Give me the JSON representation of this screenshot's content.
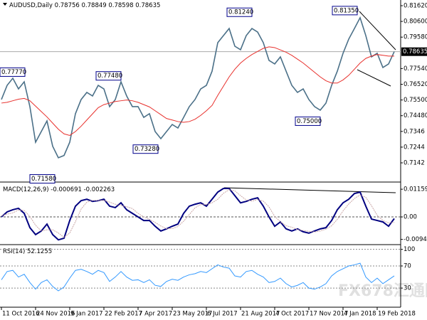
{
  "header": {
    "symbol": "AUDUSD,Daily",
    "open": 0.78756,
    "high": 0.78849,
    "low": 0.78598,
    "close": 0.78635
  },
  "watermark": "FX678汇通网",
  "chart_data": [
    {
      "type": "line",
      "categories": [
        "11 Oct 2016",
        null,
        null,
        null,
        null,
        null,
        "24 Nov 2016",
        null,
        null,
        null,
        null,
        null,
        "9 Jan 2017",
        null,
        null,
        null,
        null,
        null,
        "22 Feb 2017",
        null,
        null,
        null,
        null,
        null,
        "7 Apr 2017",
        null,
        null,
        null,
        null,
        null,
        "23 May 2017",
        null,
        null,
        null,
        null,
        null,
        "6 Jul 2017",
        null,
        null,
        null,
        null,
        null,
        "21 Aug 2017",
        null,
        null,
        null,
        null,
        null,
        "4 Oct 2017",
        null,
        null,
        null,
        null,
        null,
        "17 Nov 2017",
        null,
        null,
        null,
        null,
        null,
        "4 Jan 2018",
        null,
        null,
        null,
        null,
        null,
        "19 Feb 2018",
        null,
        null,
        null
      ],
      "series": [
        {
          "color": "#4b7088",
          "values": [
            0.7553,
            0.7645,
            0.7691,
            0.7622,
            0.7668,
            0.7507,
            0.7276,
            0.7345,
            0.7414,
            0.725,
            0.7175,
            0.719,
            0.7276,
            0.7461,
            0.7553,
            0.7599,
            0.7576,
            0.7645,
            0.7622,
            0.7507,
            0.7553,
            0.7668,
            0.7576,
            0.7507,
            0.7507,
            0.7437,
            0.7461,
            0.7345,
            0.7299,
            0.7345,
            0.7391,
            0.7368,
            0.7437,
            0.7507,
            0.7553,
            0.7622,
            0.7645,
            0.7737,
            0.7922,
            0.7968,
            0.8014,
            0.7899,
            0.7876,
            0.7968,
            0.8014,
            0.7991,
            0.7922,
            0.7807,
            0.7784,
            0.783,
            0.7737,
            0.7645,
            0.7599,
            0.7622,
            0.7553,
            0.7507,
            0.7484,
            0.753,
            0.7645,
            0.7737,
            0.7853,
            0.7945,
            0.8014,
            0.8084,
            0.7968,
            0.783,
            0.7853,
            0.7761,
            0.7784,
            0.7864
          ]
        },
        {
          "color": "#e8302c",
          "values": [
            0.753,
            0.7535,
            0.7545,
            0.7555,
            0.756,
            0.7545,
            0.751,
            0.7475,
            0.744,
            0.74,
            0.736,
            0.733,
            0.732,
            0.7345,
            0.738,
            0.742,
            0.746,
            0.75,
            0.752,
            0.753,
            0.754,
            0.7545,
            0.755,
            0.7545,
            0.7535,
            0.752,
            0.7505,
            0.748,
            0.7455,
            0.743,
            0.742,
            0.741,
            0.7405,
            0.741,
            0.7425,
            0.745,
            0.748,
            0.7515,
            0.758,
            0.764,
            0.77,
            0.775,
            0.779,
            0.782,
            0.7845,
            0.7865,
            0.7885,
            0.7895,
            0.789,
            0.7875,
            0.786,
            0.784,
            0.7815,
            0.779,
            0.776,
            0.773,
            0.77,
            0.7675,
            0.766,
            0.766,
            0.768,
            0.771,
            0.775,
            0.779,
            0.782,
            0.7835,
            0.7845,
            0.784,
            0.7835,
            0.7835
          ]
        }
      ],
      "ylim": [
        0.7022,
        0.8199
      ],
      "yticks": [
        {
          "value": 0.8162,
          "label": "0.81620"
        },
        {
          "value": 0.806,
          "label": "0.80600"
        },
        {
          "value": 0.7958,
          "label": "0.79580"
        },
        {
          "value": 0.7754,
          "label": "0.77540"
        },
        {
          "value": 0.7652,
          "label": "0.76520"
        },
        {
          "value": 0.755,
          "label": "0.75500"
        },
        {
          "value": 0.7448,
          "label": "0.74480"
        },
        0.7346,
        0.7244,
        0.7142
      ],
      "annotations": [
        {
          "value": 0.7777,
          "label": "0.77770"
        },
        {
          "value": 0.7158,
          "label": "0.71580"
        },
        {
          "value": 0.7748,
          "label": "0.77480"
        },
        {
          "value": 0.7328,
          "label": "0.73280"
        },
        {
          "value": 0.8124,
          "label": "0.81240"
        },
        {
          "value": 0.75,
          "label": "0.75000"
        },
        {
          "value": 0.8135,
          "label": "0.81350"
        }
      ]
    },
    {
      "type": "line",
      "title": "MACD(12,26,9)",
      "series": [
        {
          "color": "#000080",
          "last": -0.000691,
          "values": [
            0,
            0.0021,
            0.003,
            0.0036,
            0.0015,
            -0.0045,
            -0.0074,
            -0.0059,
            -0.003,
            -0.0074,
            -0.0096,
            -0.0089,
            -0.0015,
            0.0045,
            0.0068,
            0.0074,
            0.0065,
            0.0068,
            0.0074,
            0.0045,
            0.0039,
            0.0059,
            0.003,
            0.0015,
            0,
            -0.0015,
            -0.0015,
            -0.0039,
            -0.0059,
            -0.005,
            -0.0039,
            -0.003,
            0.0015,
            0.0045,
            0.0053,
            0.0059,
            0.0045,
            0.0074,
            0.0104,
            0.0119,
            0.0119,
            0.0089,
            0.0059,
            0.0065,
            0.0074,
            0.008,
            0.0045,
            0,
            -0.0039,
            -0.0021,
            -0.005,
            -0.0059,
            -0.005,
            -0.0062,
            -0.0068,
            -0.0059,
            -0.005,
            -0.0045,
            -0.0015,
            0.003,
            0.0059,
            0.0074,
            0.0098,
            0.0104,
            0.0045,
            -0.0009,
            -0.0015,
            -0.0021,
            -0.0039,
            -0.0007
          ]
        },
        {
          "color": "#c9a6a6",
          "last": -0.002263,
          "values": [
            0.0005,
            0.0012,
            0.0017,
            0.0029,
            0.0027,
            0.0002,
            -0.0035,
            -0.0059,
            -0.0054,
            -0.0054,
            -0.0067,
            -0.0086,
            -0.0067,
            -0.002,
            0.0033,
            0.0062,
            0.0069,
            0.0069,
            0.0069,
            0.0062,
            0.0053,
            0.0048,
            0.0043,
            0.0035,
            0.0015,
            0,
            -0.001,
            -0.0023,
            -0.0038,
            -0.0049,
            -0.0049,
            -0.004,
            -0.0018,
            0.001,
            0.0038,
            0.0052,
            0.0052,
            0.0059,
            0.0074,
            0.0099,
            0.0114,
            0.0109,
            0.0089,
            0.0071,
            0.0066,
            0.0073,
            0.0066,
            0.0042,
            0.0002,
            -0.002,
            -0.0037,
            -0.0043,
            -0.0053,
            -0.0057,
            -0.006,
            -0.0063,
            -0.0059,
            -0.0051,
            -0.0037,
            -0.001,
            0.0025,
            0.0054,
            0.0077,
            0.0092,
            0.0082,
            0.0047,
            0.0007,
            -0.0015,
            -0.0025,
            -0.0023
          ]
        }
      ],
      "ylim": [
        -0.011,
        0.014
      ],
      "yticks": [
        0.01159,
        {
          "value": 0,
          "label": "0.00"
        },
        -0.009406
      ],
      "zero_line": true
    },
    {
      "type": "line",
      "title": "RSI(14)",
      "series": [
        {
          "color": "#3399ff",
          "last": 52.1255,
          "values": [
            45,
            60,
            62,
            50,
            55,
            40,
            28,
            40,
            45,
            33,
            25,
            32,
            48,
            62,
            64,
            60,
            55,
            62,
            58,
            42,
            50,
            60,
            50,
            44,
            45,
            40,
            45,
            35,
            33,
            42,
            46,
            44,
            50,
            54,
            56,
            60,
            58,
            65,
            72,
            68,
            66,
            52,
            50,
            60,
            62,
            55,
            50,
            40,
            42,
            48,
            38,
            32,
            35,
            40,
            30,
            28,
            32,
            38,
            52,
            60,
            65,
            70,
            72,
            75,
            50,
            40,
            48,
            38,
            45,
            52.1255
          ]
        }
      ],
      "ylim": [
        -2,
        106
      ],
      "yticks": [
        100,
        70,
        30
      ],
      "grid": "dashed"
    }
  ]
}
